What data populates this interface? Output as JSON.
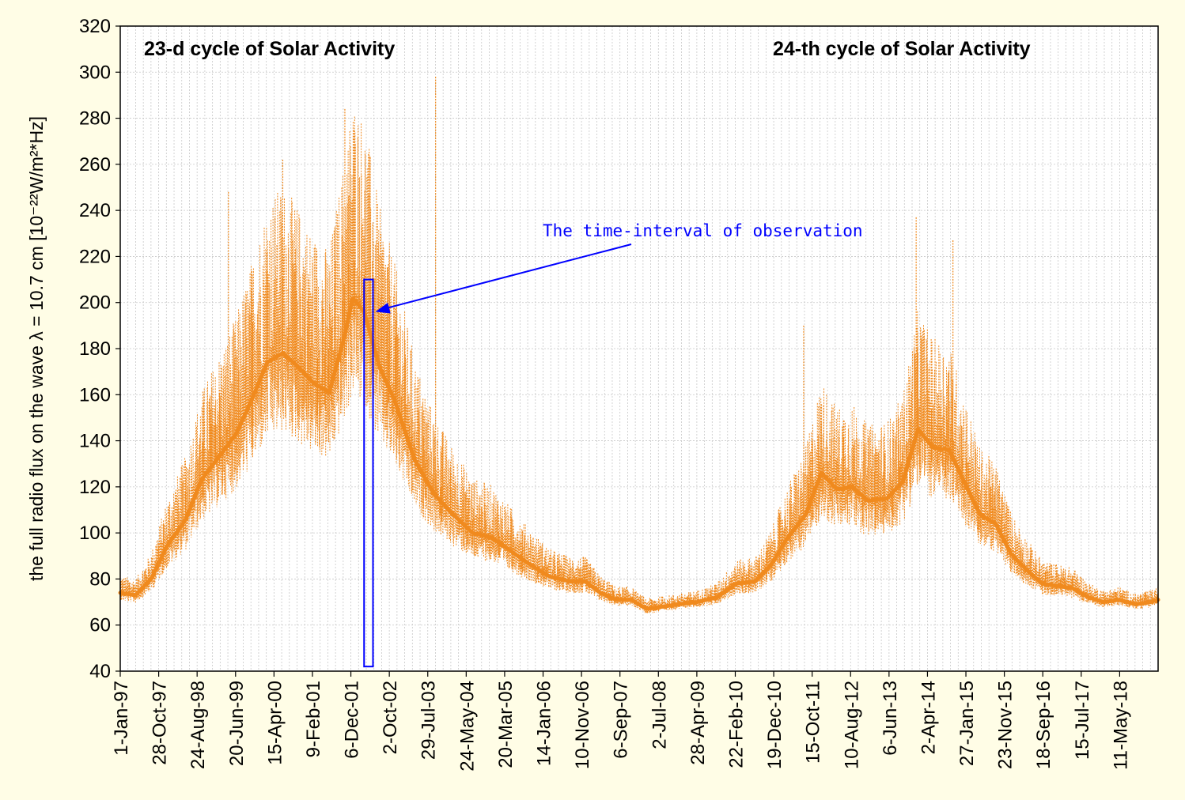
{
  "chart_data": {
    "type": "line",
    "title": "",
    "xlabel": "",
    "ylabel": "the full radio flux on the wave λ = 10.7 cm [10⁻²²W/m²*Hz]",
    "ylim": [
      40,
      320
    ],
    "yticks": [
      40,
      60,
      80,
      100,
      120,
      140,
      160,
      180,
      200,
      220,
      240,
      260,
      280,
      300,
      320
    ],
    "x_tick_labels": [
      "1-Jan-97",
      "28-Oct-97",
      "24-Aug-98",
      "20-Jun-99",
      "15-Apr-00",
      "9-Feb-01",
      "6-Dec-01",
      "2-Oct-02",
      "29-Jul-03",
      "24-May-04",
      "20-Mar-05",
      "14-Jan-06",
      "10-Nov-06",
      "6-Sep-07",
      "2-Jul-08",
      "28-Apr-09",
      "22-Feb-10",
      "19-Dec-10",
      "15-Oct-11",
      "10-Aug-12",
      "6-Jun-13",
      "2-Apr-14",
      "27-Jan-15",
      "23-Nov-15",
      "18-Sep-16",
      "15-Jul-17",
      "11-May-18"
    ],
    "xlim": [
      "1997-01-01",
      "2019-05-01"
    ],
    "grid": true,
    "annotations": {
      "cycle23": "23-d cycle of Solar Activity",
      "cycle24": "24-th cycle of Solar Activity",
      "interval": "The time-interval of observation"
    },
    "observation_interval": {
      "x_start": "2002-04-01",
      "x_end": "2002-06-10",
      "y_low": 42,
      "y_high": 210
    },
    "series": [
      {
        "type": "smoothed",
        "color": "#f08a1e",
        "x": [
          "1997-01-01",
          "1997-05-01",
          "1997-09-01",
          "1998-01-01",
          "1998-06-01",
          "1998-10-01",
          "1999-03-01",
          "1999-07-01",
          "1999-11-01",
          "2000-03-01",
          "2000-07-01",
          "2000-11-01",
          "2001-03-01",
          "2001-07-01",
          "2001-11-01",
          "2002-01-01",
          "2002-04-01",
          "2002-08-01",
          "2002-12-01",
          "2003-05-01",
          "2003-10-01",
          "2004-03-01",
          "2004-08-01",
          "2005-01-01",
          "2005-06-01",
          "2005-11-01",
          "2006-04-01",
          "2006-09-01",
          "2007-01-01",
          "2007-05-01",
          "2007-09-01",
          "2008-01-01",
          "2008-05-01",
          "2008-09-01",
          "2009-01-01",
          "2009-06-01",
          "2009-11-01",
          "2010-04-01",
          "2010-09-01",
          "2011-01-01",
          "2011-05-01",
          "2011-10-01",
          "2012-02-01",
          "2012-06-01",
          "2012-10-01",
          "2013-02-01",
          "2013-07-01",
          "2013-11-01",
          "2014-03-01",
          "2014-07-01",
          "2014-11-01",
          "2015-03-01",
          "2015-07-01",
          "2015-11-01",
          "2016-03-01",
          "2016-07-01",
          "2016-11-01",
          "2017-03-01",
          "2017-07-01",
          "2017-11-01",
          "2018-03-01",
          "2018-07-01",
          "2018-11-01",
          "2019-03-01",
          "2019-05-01"
        ],
        "values": [
          74,
          73,
          80,
          94,
          106,
          123,
          134,
          143,
          158,
          174,
          178,
          172,
          165,
          161,
          186,
          202,
          196,
          172,
          157,
          132,
          117,
          108,
          100,
          98,
          92,
          86,
          81,
          79,
          79,
          74,
          71,
          71,
          67,
          68,
          69,
          70,
          72,
          78,
          79,
          86,
          97,
          108,
          126,
          119,
          120,
          114,
          115,
          122,
          145,
          137,
          136,
          122,
          108,
          104,
          91,
          84,
          78,
          77,
          76,
          72,
          70,
          71,
          69,
          70,
          71
        ]
      },
      {
        "type": "daily",
        "color": "#f08a1e",
        "peaks": [
          {
            "x": "1999-05-01",
            "value": 248
          },
          {
            "x": "2000-07-01",
            "value": 262
          },
          {
            "x": "2001-11-01",
            "value": 284
          },
          {
            "x": "2003-10-15",
            "value": 298
          },
          {
            "x": "2011-09-15",
            "value": 190
          },
          {
            "x": "2014-02-15",
            "value": 237
          },
          {
            "x": "2014-12-01",
            "value": 227
          }
        ]
      }
    ]
  }
}
